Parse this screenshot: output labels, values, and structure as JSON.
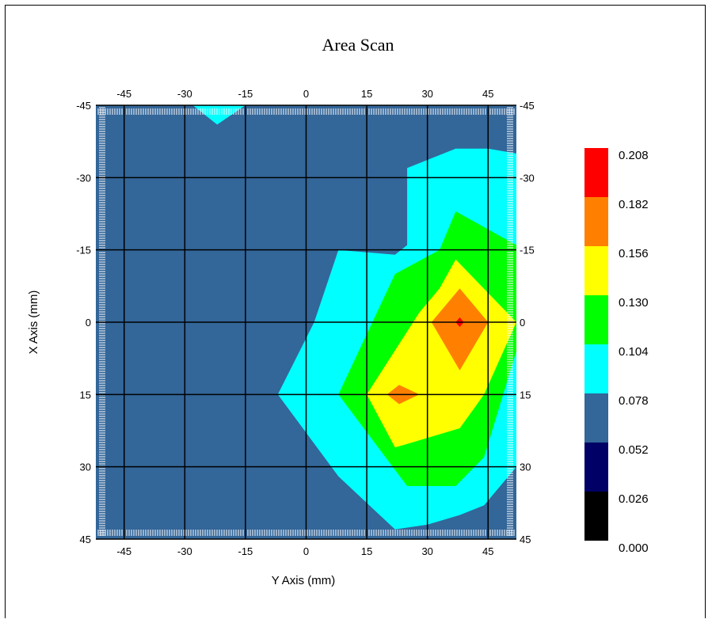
{
  "chart_data": {
    "type": "heatmap",
    "subtype": "filled-contour",
    "title": "Area Scan",
    "xlabel": "Y Axis (mm)",
    "ylabel": "X Axis (mm)",
    "xlim": [
      -52,
      52
    ],
    "ylim": [
      -45,
      45
    ],
    "y_axis_inverted": true,
    "x_ticks": [
      -45,
      -30,
      -15,
      0,
      15,
      30,
      45
    ],
    "y_ticks": [
      -45,
      -30,
      -15,
      0,
      15,
      30,
      45
    ],
    "grid": true,
    "legend_position": "right",
    "legend": {
      "levels": [
        "0.208",
        "0.182",
        "0.156",
        "0.130",
        "0.104",
        "0.078",
        "0.052",
        "0.026",
        "0.000"
      ],
      "colors": [
        "#ff0000",
        "#ff8000",
        "#ffff00",
        "#00ff00",
        "#00ffff",
        "#336699",
        "#000066",
        "#000000"
      ]
    },
    "background_color": "#336699",
    "contours": [
      {
        "level": 0.104,
        "color": "#00ffff",
        "points": [
          [
            -22,
            -45
          ],
          [
            -15,
            -45
          ],
          [
            -22,
            -41
          ],
          [
            -28,
            -45
          ]
        ]
      },
      {
        "level": 0.104,
        "color": "#00ffff",
        "points": [
          [
            25,
            -32
          ],
          [
            37,
            -36
          ],
          [
            45,
            -36
          ],
          [
            52,
            -35
          ],
          [
            52,
            30
          ],
          [
            44,
            38
          ],
          [
            38,
            40
          ],
          [
            30,
            42
          ],
          [
            22,
            43
          ],
          [
            8,
            32
          ],
          [
            -7,
            15
          ],
          [
            2,
            0
          ],
          [
            8,
            -15
          ],
          [
            22,
            -14
          ],
          [
            25,
            -16
          ]
        ]
      },
      {
        "level": 0.13,
        "color": "#00ff00",
        "points": [
          [
            37,
            -23
          ],
          [
            52,
            -16
          ],
          [
            52,
            6
          ],
          [
            44,
            28
          ],
          [
            37,
            34
          ],
          [
            25,
            34
          ],
          [
            8,
            15
          ],
          [
            22,
            -10
          ],
          [
            33,
            -15
          ]
        ]
      },
      {
        "level": 0.156,
        "color": "#ffff00",
        "points": [
          [
            37,
            -13
          ],
          [
            52,
            0
          ],
          [
            44,
            15
          ],
          [
            38,
            22
          ],
          [
            22,
            26
          ],
          [
            15,
            15
          ],
          [
            28,
            -2
          ],
          [
            33,
            -7
          ]
        ]
      },
      {
        "level": 0.182,
        "color": "#ff8000",
        "points": [
          [
            38,
            -7
          ],
          [
            45,
            0
          ],
          [
            38,
            10
          ],
          [
            31,
            0
          ]
        ]
      },
      {
        "level": 0.182,
        "color": "#ff8000",
        "points": [
          [
            23,
            13
          ],
          [
            28,
            15
          ],
          [
            23,
            17
          ],
          [
            20,
            15
          ]
        ]
      },
      {
        "level": 0.208,
        "color": "#ff0000",
        "points": [
          [
            38,
            -1
          ],
          [
            39,
            0
          ],
          [
            38,
            1
          ],
          [
            37,
            0
          ]
        ]
      }
    ]
  }
}
